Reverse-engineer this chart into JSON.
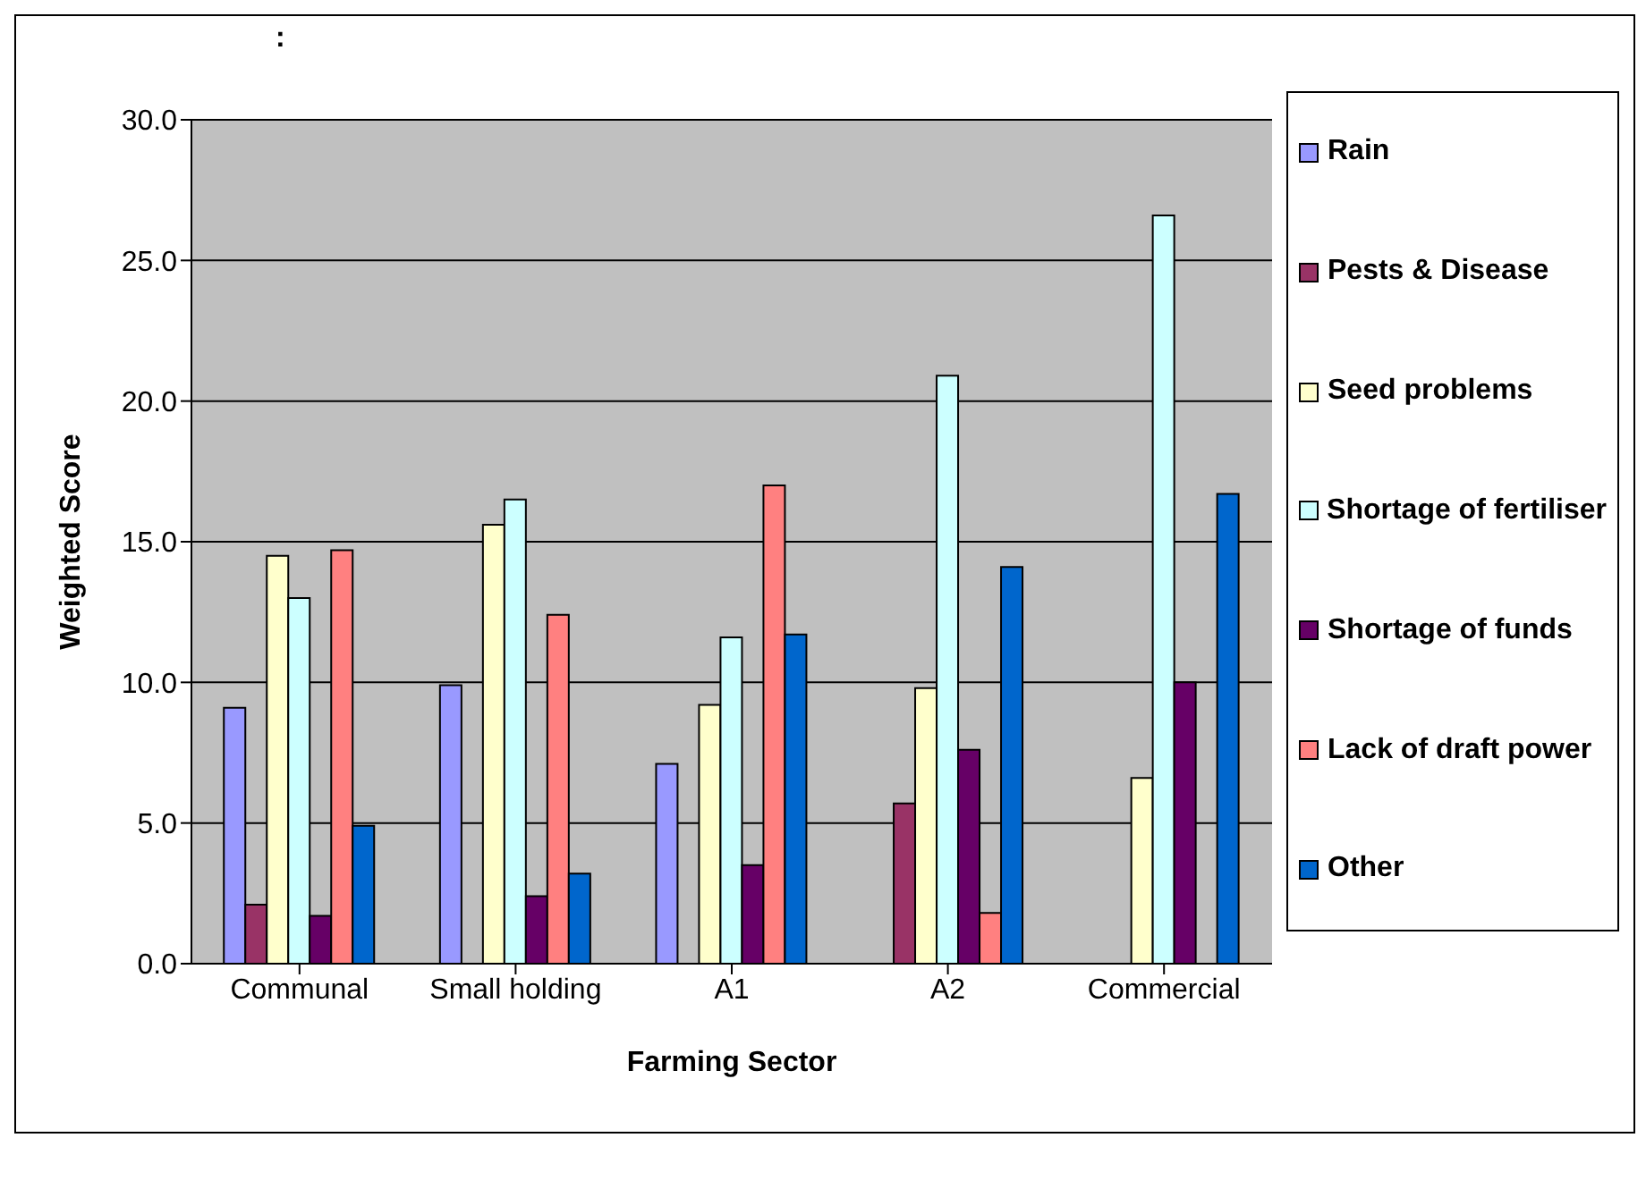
{
  "chart_data": {
    "type": "bar",
    "title": ":",
    "xlabel": "Farming Sector",
    "ylabel": "Weighted Score",
    "categories": [
      "Communal",
      "Small holding",
      "A1",
      "A2",
      "Commercial"
    ],
    "series": [
      {
        "name": "Rain",
        "color": "#9999ff",
        "values": [
          9.1,
          9.9,
          7.1,
          null,
          null
        ]
      },
      {
        "name": "Pests & Disease",
        "color": "#993366",
        "values": [
          2.1,
          null,
          null,
          5.7,
          null
        ]
      },
      {
        "name": "Seed problems",
        "color": "#ffffcc",
        "values": [
          14.5,
          15.6,
          9.2,
          9.8,
          6.6
        ]
      },
      {
        "name": "Shortage of fertiliser",
        "color": "#ccffff",
        "values": [
          13.0,
          16.5,
          11.6,
          20.9,
          26.6
        ]
      },
      {
        "name": "Shortage of funds",
        "color": "#660066",
        "values": [
          1.7,
          2.4,
          3.5,
          7.6,
          10.0
        ]
      },
      {
        "name": "Lack of draft power",
        "color": "#ff8080",
        "values": [
          14.7,
          12.4,
          17.0,
          1.8,
          null
        ]
      },
      {
        "name": "Other",
        "color": "#0066cc",
        "values": [
          4.9,
          3.2,
          11.7,
          14.1,
          16.7
        ]
      }
    ],
    "ylim": [
      0,
      30
    ],
    "yticks": [
      {
        "value": 0,
        "label": "0.0"
      },
      {
        "value": 5,
        "label": "5.0"
      },
      {
        "value": 10,
        "label": "10.0"
      },
      {
        "value": 15,
        "label": "15.0"
      },
      {
        "value": 20,
        "label": "20.0"
      },
      {
        "value": 25,
        "label": "25.0"
      },
      {
        "value": 30,
        "label": "30.0"
      }
    ],
    "grid": "y",
    "legend": "right"
  }
}
